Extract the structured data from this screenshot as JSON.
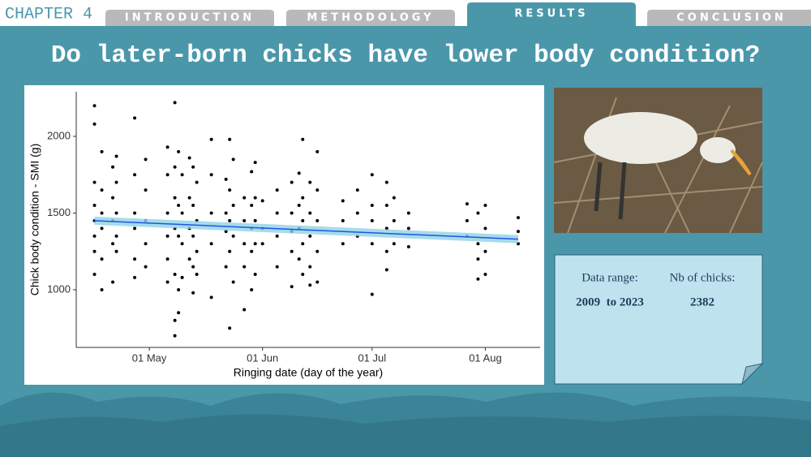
{
  "header": {
    "chapter": "CHAPTER 4",
    "tabs": [
      "INTRODUCTION",
      "METHODOLOGY",
      "RESULTS",
      "CONCLUSION"
    ],
    "active_tab": 2
  },
  "title": "Do later-born chicks have lower body condition?",
  "info_box": {
    "labels": [
      "Data range:",
      "Nb of chicks:"
    ],
    "values": [
      "2009  to 2023",
      "2382"
    ]
  },
  "chart_data": {
    "type": "scatter",
    "color": "#000000",
    "xlabel": "Ringing date (day of the year)",
    "ylabel": "Chick body condition - SMI (g)",
    "xlim": [
      101,
      228
    ],
    "ylim": [
      624,
      2291
    ],
    "xticks": [
      {
        "value": 121,
        "label": "01 May"
      },
      {
        "value": 152,
        "label": "01 Jun"
      },
      {
        "value": 182,
        "label": "01 Jul"
      },
      {
        "value": 213,
        "label": "01 Aug"
      }
    ],
    "yticks": [
      1000,
      1500,
      2000
    ],
    "x": [
      106,
      106,
      106,
      106,
      106,
      106,
      106,
      106,
      108,
      108,
      108,
      108,
      108,
      108,
      111,
      111,
      111,
      111,
      111,
      112,
      112,
      112,
      112,
      112,
      117,
      117,
      117,
      117,
      117,
      117,
      120,
      120,
      120,
      120,
      120,
      126,
      126,
      126,
      126,
      126,
      126,
      128,
      128,
      128,
      128,
      128,
      128,
      128,
      129,
      129,
      129,
      129,
      129,
      130,
      130,
      130,
      130,
      132,
      132,
      132,
      132,
      133,
      133,
      133,
      133,
      133,
      134,
      134,
      134,
      134,
      138,
      138,
      138,
      138,
      138,
      142,
      142,
      142,
      142,
      143,
      143,
      143,
      143,
      143,
      144,
      144,
      144,
      144,
      147,
      147,
      147,
      147,
      147,
      149,
      149,
      149,
      149,
      149,
      150,
      150,
      150,
      150,
      150,
      152,
      152,
      152,
      156,
      156,
      156,
      156,
      160,
      160,
      160,
      160,
      160,
      162,
      162,
      162,
      162,
      163,
      163,
      163,
      163,
      163,
      165,
      165,
      165,
      165,
      165,
      167,
      167,
      167,
      167,
      167,
      174,
      174,
      174,
      178,
      178,
      178,
      182,
      182,
      182,
      182,
      182,
      186,
      186,
      186,
      186,
      186,
      188,
      188,
      188,
      192,
      192,
      192,
      208,
      208,
      208,
      211,
      211,
      211,
      211,
      213,
      213,
      213,
      213,
      222,
      222,
      222
    ],
    "y": [
      2200,
      2080,
      1700,
      1550,
      1450,
      1350,
      1250,
      1100,
      1900,
      1650,
      1500,
      1400,
      1200,
      1000,
      1800,
      1600,
      1450,
      1300,
      1050,
      1870,
      1700,
      1500,
      1350,
      1250,
      2120,
      1750,
      1500,
      1400,
      1200,
      1080,
      1850,
      1650,
      1450,
      1300,
      1150,
      1930,
      1750,
      1500,
      1350,
      1200,
      1050,
      2220,
      1800,
      1600,
      1400,
      1100,
      800,
      700,
      1900,
      1550,
      1350,
      1000,
      850,
      1750,
      1500,
      1300,
      1080,
      1860,
      1600,
      1400,
      1200,
      1800,
      1550,
      1350,
      1150,
      980,
      1700,
      1450,
      1250,
      1100,
      1980,
      1750,
      1500,
      1300,
      950,
      1720,
      1500,
      1380,
      1150,
      1980,
      1650,
      1450,
      1250,
      750,
      1850,
      1550,
      1350,
      1050,
      1600,
      1450,
      1300,
      1150,
      870,
      1770,
      1550,
      1400,
      1250,
      1000,
      1830,
      1600,
      1450,
      1300,
      1100,
      1580,
      1400,
      1300,
      1650,
      1500,
      1350,
      1150,
      1700,
      1500,
      1380,
      1250,
      1020,
      1760,
      1550,
      1400,
      1200,
      1980,
      1600,
      1450,
      1300,
      1100,
      1700,
      1500,
      1350,
      1150,
      1030,
      1900,
      1650,
      1450,
      1250,
      1050,
      1580,
      1450,
      1300,
      1650,
      1500,
      1350,
      1750,
      1550,
      1450,
      1300,
      970,
      1700,
      1550,
      1400,
      1250,
      1130,
      1600,
      1450,
      1300,
      1500,
      1400,
      1280,
      1560,
      1450,
      1350,
      1500,
      1300,
      1200,
      1070,
      1550,
      1400,
      1250,
      1100,
      1470,
      1380,
      1300
    ],
    "trend": {
      "x": [
        106,
        222
      ],
      "y": [
        1450,
        1330
      ],
      "color": "#2255dd"
    }
  }
}
